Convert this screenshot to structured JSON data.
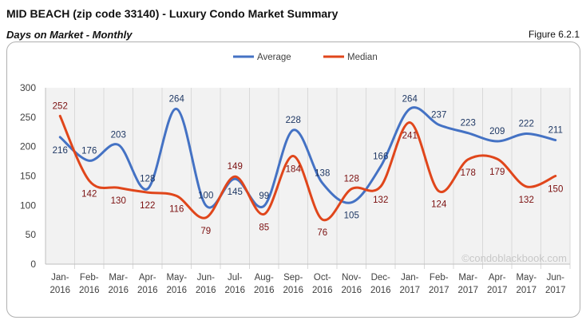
{
  "header": {
    "title": "MID BEACH (zip code 33140) - Luxury Condo Market Summary",
    "subtitle": "Days on Market - Monthly",
    "figure": "Figure 6.2.1"
  },
  "watermark": "©condoblackbook.com",
  "chart_data": {
    "type": "line",
    "categories": [
      [
        "Jan-",
        "2016"
      ],
      [
        "Feb-",
        "2016"
      ],
      [
        "Mar-",
        "2016"
      ],
      [
        "Apr-",
        "2016"
      ],
      [
        "May-",
        "2016"
      ],
      [
        "Jun-",
        "2016"
      ],
      [
        "Jul-",
        "2016"
      ],
      [
        "Aug-",
        "2016"
      ],
      [
        "Sep-",
        "2016"
      ],
      [
        "Oct-",
        "2016"
      ],
      [
        "Nov-",
        "2016"
      ],
      [
        "Dec-",
        "2016"
      ],
      [
        "Jan-",
        "2017"
      ],
      [
        "Feb-",
        "2017"
      ],
      [
        "Mar-",
        "2017"
      ],
      [
        "Apr-",
        "2017"
      ],
      [
        "May-",
        "2017"
      ],
      [
        "Jun-",
        "2017"
      ]
    ],
    "series": [
      {
        "name": "Average",
        "color": "#4472C4",
        "label_color": "#1F3864",
        "values": [
          216,
          176,
          203,
          128,
          264,
          100,
          145,
          99,
          228,
          138,
          105,
          166,
          264,
          237,
          223,
          209,
          222,
          211
        ]
      },
      {
        "name": "Median",
        "color": "#E0461B",
        "label_color": "#7B1010",
        "values": [
          252,
          142,
          130,
          122,
          116,
          79,
          149,
          85,
          184,
          76,
          128,
          132,
          241,
          124,
          178,
          179,
          132,
          150
        ]
      }
    ],
    "ylim": [
      0,
      300
    ],
    "yticks": [
      "0",
      "50",
      "100",
      "150",
      "200",
      "250",
      "300"
    ],
    "grid": "vertical",
    "legend": "top",
    "smooth": true
  }
}
